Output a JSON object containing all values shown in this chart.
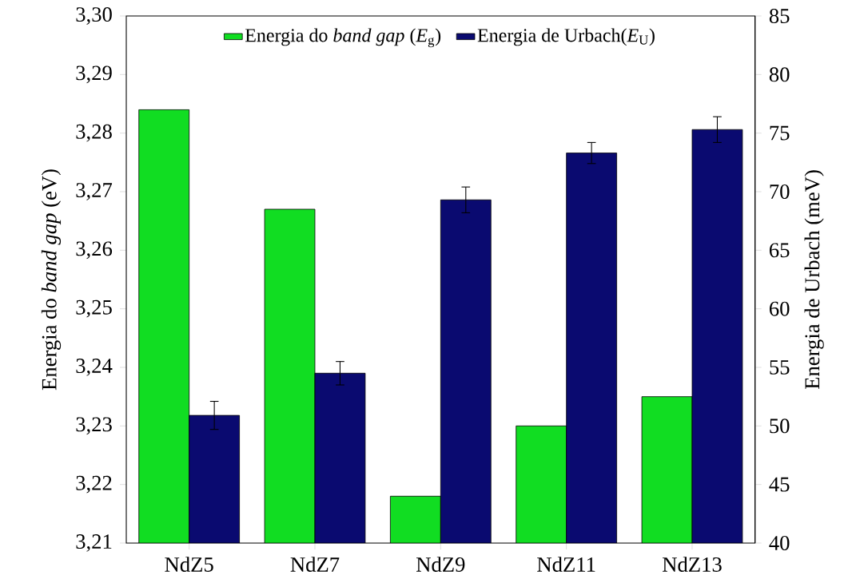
{
  "chart_data": {
    "type": "bar",
    "categories": [
      "NdZ5",
      "NdZ7",
      "NdZ9",
      "NdZ11",
      "NdZ13"
    ],
    "series": [
      {
        "name": "Energia do *band gap* (*E*$_{g}$)",
        "color": "#11dd22",
        "values": [
          3.284,
          3.267,
          3.218,
          3.23,
          3.235
        ]
      },
      {
        "name": "Energia de Urbach(*E*$_{U}$)",
        "color": "#0a0a70",
        "axis": "y2",
        "values": [
          50.9,
          54.5,
          69.3,
          73.3,
          75.3
        ],
        "errors": [
          1.2,
          1.0,
          1.1,
          0.9,
          1.1
        ]
      }
    ],
    "ylabel": "Energia do *band gap* (eV)",
    "y2label": "Energia de Urbach (meV)",
    "ylim": [
      3.21,
      3.3
    ],
    "yticks": [
      {
        "value": 3.21,
        "label": "3,21"
      },
      {
        "value": 3.22,
        "label": "3,22"
      },
      {
        "value": 3.23,
        "label": "3,23"
      },
      {
        "value": 3.24,
        "label": "3,24"
      },
      {
        "value": 3.25,
        "label": "3,25"
      },
      {
        "value": 3.26,
        "label": "3,26"
      },
      {
        "value": 3.27,
        "label": "3,27"
      },
      {
        "value": 3.28,
        "label": "3,28"
      },
      {
        "value": 3.29,
        "label": "3,29"
      },
      {
        "value": 3.3,
        "label": "3,30"
      }
    ],
    "y2lim": [
      40,
      85
    ],
    "y2ticks": [
      40,
      45,
      50,
      55,
      60,
      65,
      70,
      75,
      80,
      85
    ],
    "legend": "top"
  }
}
